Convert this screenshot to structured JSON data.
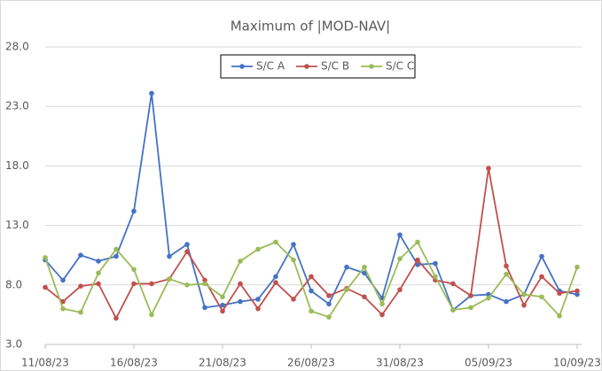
{
  "chart_data": {
    "type": "line",
    "title": "Maximum of |MOD-NAV|",
    "categories": [
      "11/08/23",
      null,
      null,
      null,
      null,
      "16/08/23",
      null,
      null,
      null,
      null,
      "21/08/23",
      null,
      null,
      null,
      null,
      "26/08/23",
      null,
      null,
      null,
      null,
      "31/08/23",
      null,
      null,
      null,
      null,
      "05/09/23",
      null,
      null,
      null,
      null,
      "10/09/23"
    ],
    "series": [
      {
        "name": "S/C A",
        "color": "#4472c4",
        "values": [
          10.1,
          8.4,
          10.5,
          10.0,
          10.4,
          14.2,
          24.1,
          10.4,
          11.4,
          6.1,
          6.3,
          6.6,
          6.8,
          8.7,
          11.4,
          7.5,
          6.4,
          9.5,
          9.0,
          6.9,
          12.2,
          9.7,
          9.8,
          5.9,
          7.1,
          7.2,
          6.6,
          7.2,
          10.4,
          7.5,
          7.2
        ]
      },
      {
        "name": "S/C B",
        "color": "#c0504d",
        "values": [
          7.8,
          6.6,
          7.9,
          8.1,
          5.2,
          8.1,
          8.1,
          8.5,
          10.8,
          8.4,
          5.8,
          8.1,
          6.0,
          8.2,
          6.8,
          8.7,
          7.1,
          7.7,
          7.0,
          5.5,
          7.6,
          10.1,
          8.4,
          8.1,
          7.1,
          17.8,
          9.6,
          6.3,
          8.7,
          7.3,
          7.5
        ]
      },
      {
        "name": "S/C C",
        "color": "#9bbb59",
        "values": [
          10.3,
          6.0,
          5.7,
          9.0,
          11.0,
          9.3,
          5.5,
          8.5,
          8.0,
          8.1,
          7.0,
          10.0,
          11.0,
          11.6,
          10.1,
          5.8,
          5.3,
          7.6,
          9.5,
          6.4,
          10.2,
          11.6,
          8.7,
          5.9,
          6.1,
          6.9,
          8.9,
          7.2,
          7.0,
          5.4,
          9.5
        ]
      }
    ],
    "ylim": [
      3,
      28
    ],
    "yticks": [
      {
        "value": 3,
        "label": "3.0"
      },
      {
        "value": 8,
        "label": "8.0"
      },
      {
        "value": 13,
        "label": "13.0"
      },
      {
        "value": 18,
        "label": "18.0"
      },
      {
        "value": 23,
        "label": "23.0"
      },
      {
        "value": 28,
        "label": "28.0"
      }
    ],
    "grid": true,
    "legend": "top"
  }
}
